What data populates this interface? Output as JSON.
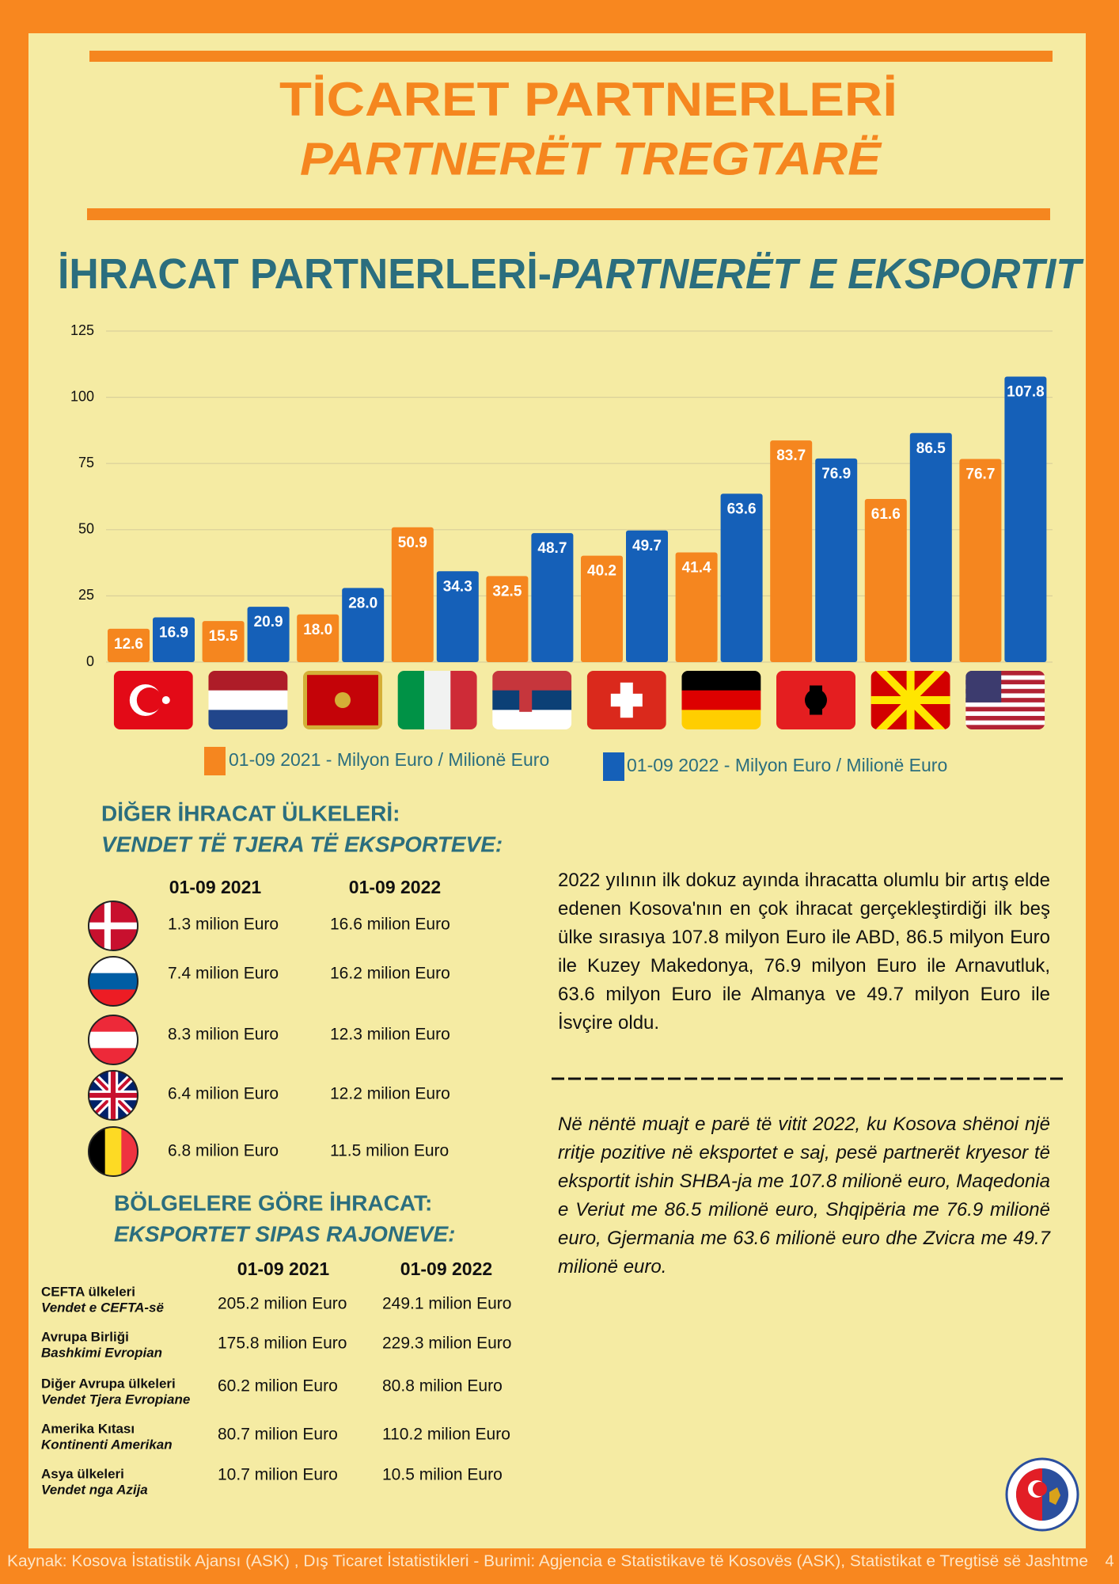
{
  "header": {
    "title": "TİCARET PARTNERLERİ",
    "subtitle": "PARTNERËT TREGTARË"
  },
  "chart_data": {
    "type": "bar",
    "title": "İHRACAT PARTNERLERİ-",
    "subtitle": "PARTNERËT E EKSPORTIT",
    "categories": [
      null,
      null,
      null,
      null,
      null,
      null,
      null,
      null,
      null,
      null
    ],
    "series": [
      {
        "name": "01-09 2021 - Milyon Euro / Milionë Euro",
        "color": "#f5861f",
        "values": [
          12.6,
          15.5,
          18.0,
          50.9,
          32.5,
          40.2,
          41.4,
          83.7,
          61.6,
          76.7
        ],
        "value_labels": [
          "12.6",
          "15.5",
          "18.0",
          "50.9",
          "32.5",
          "40.2",
          "41.4",
          "83.7",
          "61.6",
          "76.7"
        ]
      },
      {
        "name": "01-09 2022 - Milyon Euro / Milionë Euro",
        "color": "#1560b8",
        "values": [
          16.9,
          20.9,
          28.0,
          34.3,
          48.7,
          49.7,
          63.6,
          76.9,
          86.5,
          107.8
        ],
        "value_labels": [
          "16.9",
          "20.9",
          "28.0",
          "34.3",
          "48.7",
          "49.7",
          "63.6",
          "76.9",
          "86.5",
          "107.8"
        ]
      }
    ],
    "ylim": [
      0,
      125
    ],
    "yticks": [
      0,
      25,
      50,
      75,
      100,
      125
    ],
    "grid": true
  },
  "other_countries": {
    "title": "DİĞER İHRACAT ÜLKELERİ:",
    "subtitle": "VENDET TË TJERA TË EKSPORTEVE:",
    "columns": [
      "01-09 2021",
      "01-09 2022"
    ],
    "rows": [
      [
        "1.3 milion Euro",
        "16.6 milion Euro"
      ],
      [
        "7.4 milion Euro",
        "16.2 milion Euro"
      ],
      [
        "8.3 milion Euro",
        "12.3 milion Euro"
      ],
      [
        "6.4 milion Euro",
        "12.2 milion Euro"
      ],
      [
        "6.8 milion Euro",
        "11.5 milion Euro"
      ]
    ]
  },
  "regions": {
    "title": "BÖLGELERE GÖRE İHRACAT:",
    "subtitle": "EKSPORTET SIPAS RAJONEVE:",
    "columns": [
      "01-09 2021",
      "01-09 2022"
    ],
    "rows": [
      {
        "label": "CEFTA ülkeleri",
        "label_sq": "Vendet e CEFTA-së",
        "values": [
          "205.2 milion Euro",
          "249.1 milion Euro"
        ]
      },
      {
        "label": "Avrupa Birliği",
        "label_sq": "Bashkimi Evropian",
        "values": [
          "175.8 milion Euro",
          "229.3 milion Euro"
        ]
      },
      {
        "label": "Diğer Avrupa ülkeleri",
        "label_sq": "Vendet Tjera Evropiane",
        "values": [
          "60.2 milion Euro",
          "80.8 milion Euro"
        ]
      },
      {
        "label": "Amerika Kıtası",
        "label_sq": "Kontinenti Amerikan",
        "values": [
          "80.7 milion Euro",
          "110.2 milion Euro"
        ]
      },
      {
        "label": "Asya ülkeleri",
        "label_sq": "Vendet nga Azija",
        "values": [
          "10.7 milion Euro",
          "10.5 milion Euro"
        ]
      }
    ]
  },
  "text_tr": "2022 yılının ilk dokuz ayında ihracatta olumlu bir artış elde edenen Kosova'nın en çok ihracat gerçekleştirdiği ilk beş ülke sırasıya 107.8 milyon Euro ile ABD, 86.5 milyon Euro ile Kuzey Makedonya, 76.9 milyon Euro ile Arnavutluk,  63.6 milyon Euro ile Almanya ve 49.7 milyon Euro ile İsvçire oldu.",
  "text_sq": "Në nëntë muajt e parë të vitit 2022, ku Kosova shënoi një rritje pozitive në eksportet e saj, pesë partnerët kryesor të eksportit ishin SHBA-ja me 107.8 milionë euro, Maqedonia e Veriut me 86.5 milionë euro, Shqipëria me 76.9 milionë euro, Gjermania me 63.6 milionë euro dhe Zvicra me 49.7 milionë euro.",
  "footer": {
    "source": "Kaynak: Kosova İstatistik Ajansı (ASK) ,  Dış Ticaret İstatistikleri -   Burimi: Agjencia e Statistikave të Kosovës (ASK), Statistikat e Tregtisë së Jashtme",
    "page": "4"
  }
}
